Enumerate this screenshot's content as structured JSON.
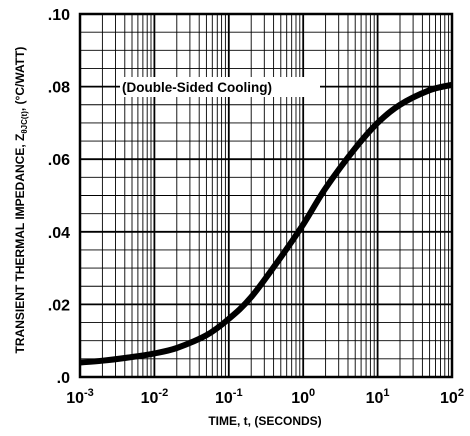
{
  "chart_data": {
    "type": "line",
    "title": "",
    "xlabel": "TIME, t, (SECONDS)",
    "ylabel_parts": {
      "prefix": "TRANSIENT THERMAL IMPEDANCE, Z",
      "subscript": "θJC(t)",
      "suffix": ", (°C/WATT)"
    },
    "x_scale": "log",
    "xlim": [
      0.001,
      100
    ],
    "ylim": [
      0,
      0.1
    ],
    "grid": true,
    "x_ticks": [
      {
        "base": "10",
        "exp": "-3"
      },
      {
        "base": "10",
        "exp": "-2"
      },
      {
        "base": "10",
        "exp": "-1"
      },
      {
        "base": "10",
        "exp": "0"
      },
      {
        "base": "10",
        "exp": "1"
      },
      {
        "base": "10",
        "exp": "2"
      }
    ],
    "y_ticks": [
      ".10",
      ".08",
      ".06",
      ".04",
      ".02",
      ".0"
    ],
    "annotation": "(Double-Sided Cooling)",
    "series": [
      {
        "x": [
          0.001,
          0.002,
          0.005,
          0.01,
          0.02,
          0.05,
          0.1,
          0.2,
          0.5,
          1,
          2,
          5,
          10,
          20,
          50,
          100
        ],
        "y": [
          0.004,
          0.0045,
          0.0055,
          0.0065,
          0.008,
          0.0115,
          0.016,
          0.022,
          0.033,
          0.042,
          0.052,
          0.063,
          0.07,
          0.075,
          0.079,
          0.0805
        ]
      }
    ]
  }
}
